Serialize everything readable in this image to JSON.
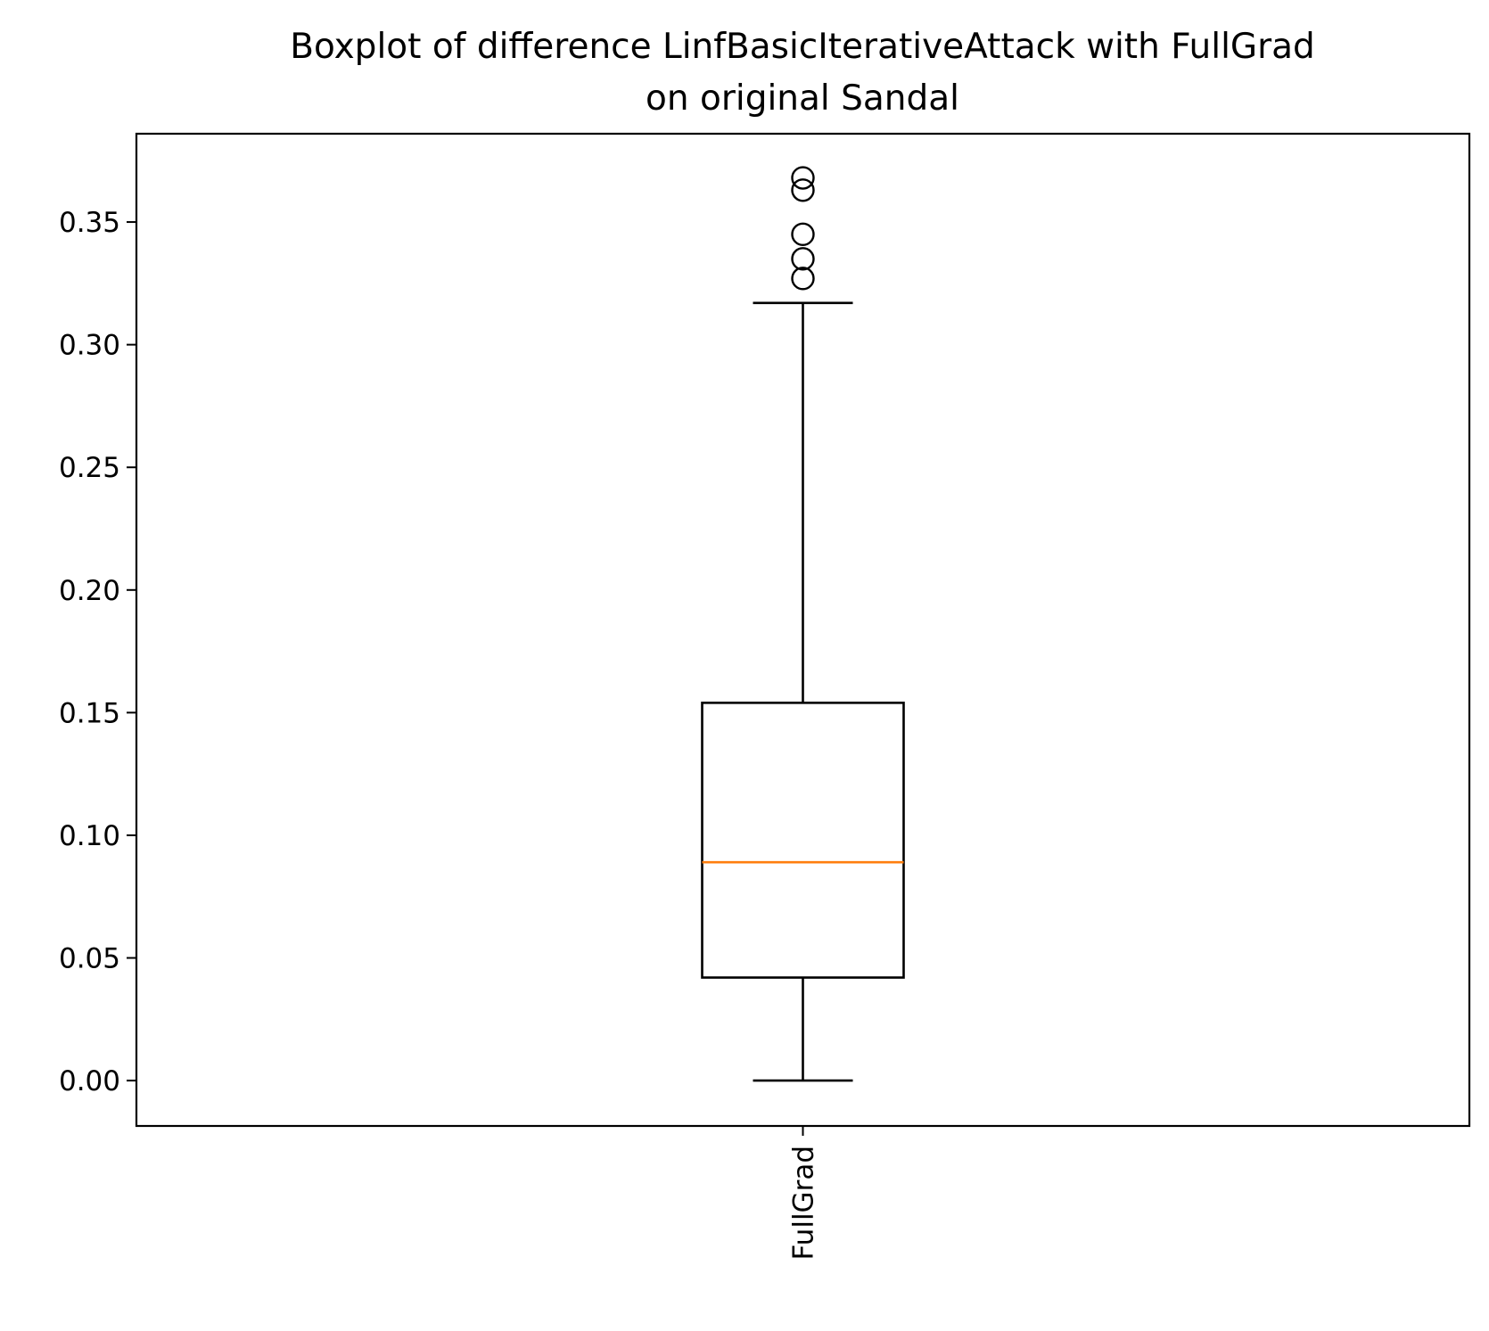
{
  "chart_data": {
    "type": "box",
    "title_lines": [
      "Boxplot of difference LinfBasicIterativeAttack with FullGrad",
      "on original Sandal"
    ],
    "xlabel": "",
    "ylabel": "",
    "categories": [
      "FullGrad"
    ],
    "ylim": [
      -0.0185,
      0.386
    ],
    "yticks": [
      0.0,
      0.05,
      0.1,
      0.15,
      0.2,
      0.25,
      0.3,
      0.35
    ],
    "ytick_labels": [
      "0.00",
      "0.05",
      "0.10",
      "0.15",
      "0.20",
      "0.25",
      "0.30",
      "0.35"
    ],
    "boxes": [
      {
        "category": "FullGrad",
        "whisker_low": 0.0,
        "q1": 0.042,
        "median": 0.089,
        "q3": 0.154,
        "whisker_high": 0.317,
        "outliers": [
          0.327,
          0.335,
          0.345,
          0.363,
          0.368
        ]
      }
    ],
    "grid": false,
    "legend": "none",
    "colors": {
      "box": "#000000",
      "median": "#ff7f0e",
      "flier": "#000000"
    }
  }
}
